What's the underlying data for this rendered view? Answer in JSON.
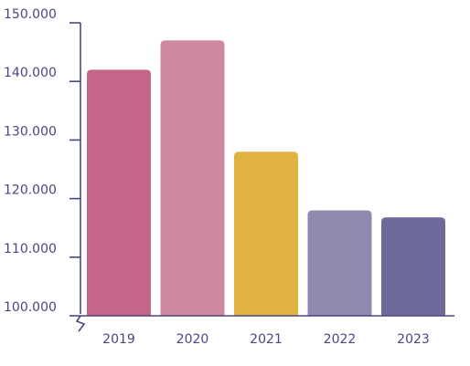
{
  "chart_data": {
    "type": "bar",
    "categories": [
      "2019",
      "2020",
      "2021",
      "2022",
      "2023"
    ],
    "values": [
      142000,
      147000,
      128000,
      118000,
      116800
    ],
    "bar_colors": [
      "#c4668a",
      "#d087a1",
      "#e0b242",
      "#8f89ae",
      "#6e6b9a"
    ],
    "axis_color": "#4a4585",
    "y_ticks": [
      100000,
      110000,
      120000,
      130000,
      140000,
      150000
    ],
    "y_tick_labels": [
      "100.000",
      "110.000",
      "120.000",
      "130.000",
      "140.000",
      "150.000"
    ],
    "ylim": [
      100000,
      150000
    ],
    "y_axis_break": true,
    "title": "",
    "xlabel": "",
    "ylabel": "",
    "grid": false,
    "legend": "none"
  }
}
